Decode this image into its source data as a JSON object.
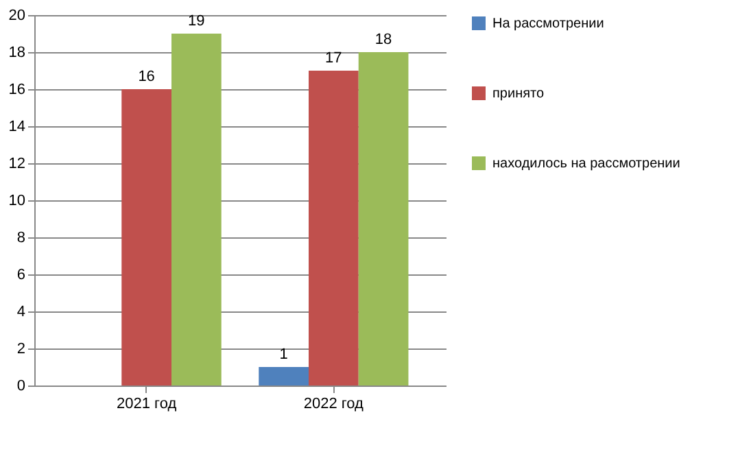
{
  "chart_data": {
    "type": "bar",
    "categories": [
      "2021 год",
      "2022 год"
    ],
    "series": [
      {
        "name": "На рассмотрении",
        "color": "#4f81bd",
        "values": [
          null,
          1
        ]
      },
      {
        "name": "принято",
        "color": "#c0504d",
        "values": [
          16,
          17
        ]
      },
      {
        "name": "находилось на рассмотрении",
        "color": "#9bbb59",
        "values": [
          19,
          18
        ]
      }
    ],
    "ylim": [
      0,
      20
    ],
    "yticks": [
      0,
      2,
      4,
      6,
      8,
      10,
      12,
      14,
      16,
      18,
      20
    ],
    "grid": "y",
    "legend": "right",
    "data_labels": true
  }
}
